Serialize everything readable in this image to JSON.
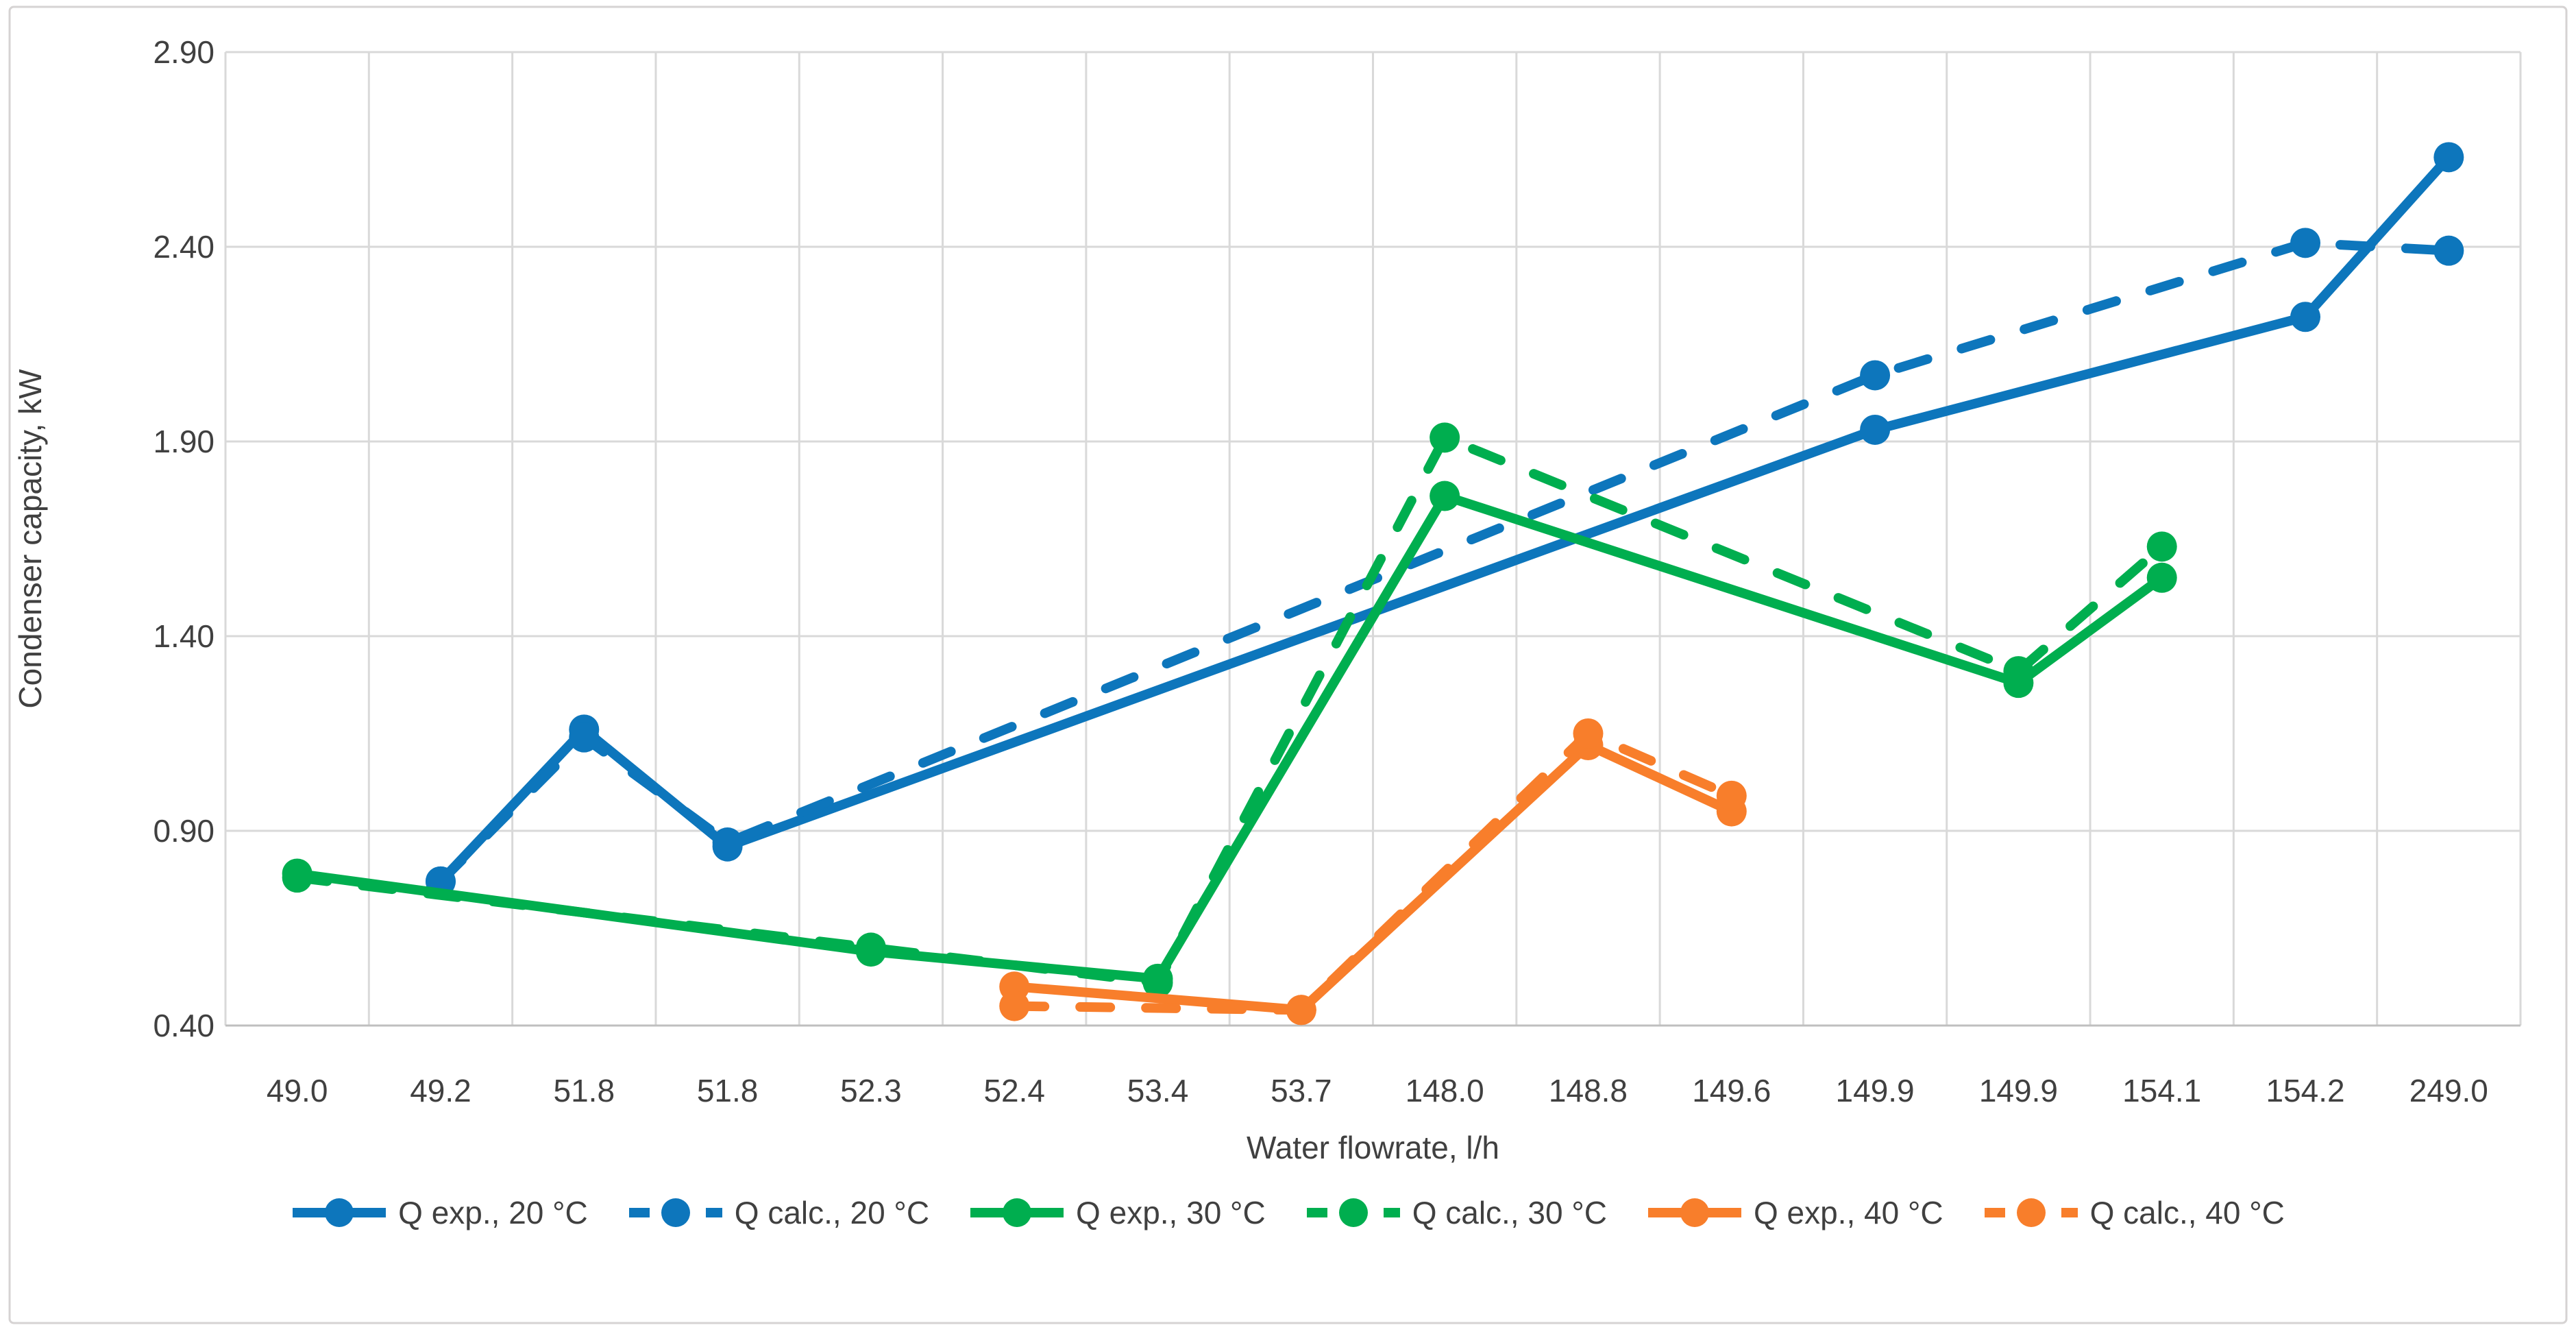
{
  "chart_data": {
    "type": "line",
    "title": "",
    "xlabel": "Water flowrate, l/h",
    "ylabel": "Condenser capacity, kW",
    "categories": [
      "49.0",
      "49.2",
      "51.8",
      "51.8",
      "52.3",
      "52.4",
      "53.4",
      "53.7",
      "148.0",
      "148.8",
      "149.6",
      "149.9",
      "149.9",
      "154.1",
      "154.2",
      "249.0"
    ],
    "y_ticks": [
      "0.40",
      "0.90",
      "1.40",
      "1.90",
      "2.40",
      "2.90"
    ],
    "ylim": [
      0.4,
      2.9
    ],
    "y_step": 0.5,
    "grid": "on",
    "legend_position": "bottom",
    "series": [
      {
        "name": "Q exp., 20 °C",
        "color": "#0d76bc",
        "dash": "solid",
        "values": [
          null,
          0.77,
          1.16,
          0.86,
          null,
          null,
          null,
          null,
          null,
          null,
          null,
          1.93,
          null,
          null,
          2.22,
          2.63
        ]
      },
      {
        "name": "Q calc., 20 °C",
        "color": "#0d76bc",
        "dash": "dashed",
        "values": [
          null,
          0.77,
          1.14,
          0.87,
          null,
          null,
          null,
          null,
          null,
          null,
          null,
          2.07,
          null,
          null,
          2.41,
          2.39
        ]
      },
      {
        "name": "Q exp., 30 °C",
        "color": "#00ae4f",
        "dash": "solid",
        "values": [
          0.79,
          null,
          null,
          null,
          0.59,
          null,
          0.52,
          null,
          1.76,
          null,
          null,
          null,
          1.28,
          1.55,
          null,
          null
        ]
      },
      {
        "name": "Q calc., 30 °C",
        "color": "#00ae4f",
        "dash": "dashed",
        "values": [
          0.78,
          null,
          null,
          null,
          0.6,
          null,
          0.51,
          null,
          1.91,
          null,
          null,
          null,
          1.31,
          1.63,
          null,
          null
        ]
      },
      {
        "name": "Q exp., 40 °C",
        "color": "#f87e2b",
        "dash": "solid",
        "values": [
          null,
          null,
          null,
          null,
          null,
          0.5,
          null,
          0.44,
          null,
          1.12,
          0.95,
          null,
          null,
          null,
          null,
          null
        ]
      },
      {
        "name": "Q calc., 40 °C",
        "color": "#f87e2b",
        "dash": "dashed",
        "values": [
          null,
          null,
          null,
          null,
          null,
          0.45,
          null,
          0.44,
          null,
          1.15,
          0.99,
          null,
          null,
          null,
          null,
          null
        ]
      }
    ],
    "colors": {
      "grid": "#d9d9d9",
      "axis_line": "#bfbfbf",
      "text": "#404040",
      "frame": "#d6d3d3",
      "series_blue": "#0d76bc",
      "series_green": "#00ae4f",
      "series_orange": "#f87e2b"
    }
  }
}
